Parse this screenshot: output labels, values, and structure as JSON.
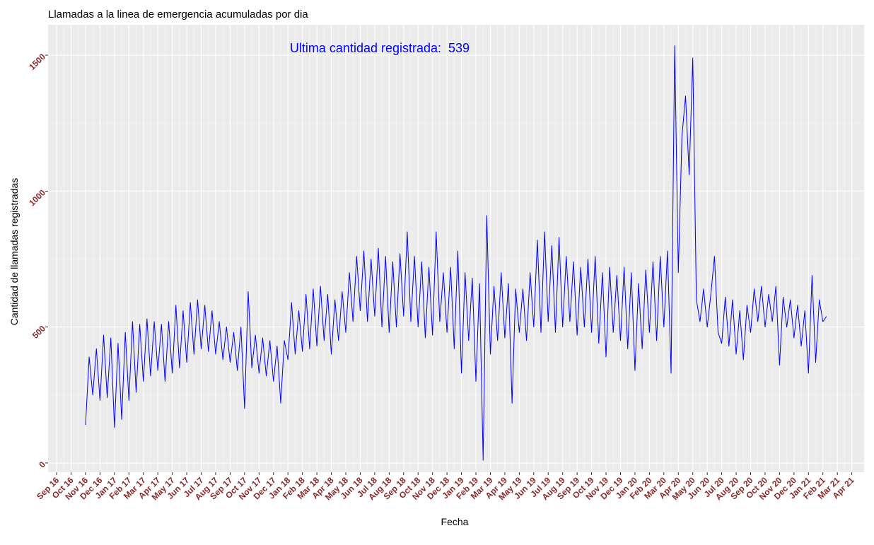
{
  "chart_data": {
    "type": "line",
    "title": "Llamadas a la linea de emergencia acumuladas por dia",
    "xlabel": "Fecha",
    "ylabel": "Cantidad de llamadas registradas",
    "annotation": "Ultima cantidad registrada:",
    "annotation_value": 539,
    "grid": true,
    "x": [
      2,
      2.25,
      2.5,
      2.75,
      3,
      3.25,
      3.5,
      3.75,
      4,
      4.25,
      4.5,
      4.75,
      5,
      5.25,
      5.5,
      5.75,
      6,
      6.25,
      6.5,
      6.75,
      7,
      7.25,
      7.5,
      7.75,
      8,
      8.25,
      8.5,
      8.75,
      9,
      9.25,
      9.5,
      9.75,
      10,
      10.25,
      10.5,
      10.75,
      11,
      11.25,
      11.5,
      11.75,
      12,
      12.25,
      12.5,
      12.75,
      13,
      13.25,
      13.5,
      13.75,
      14,
      14.25,
      14.5,
      14.75,
      15,
      15.25,
      15.5,
      15.75,
      16,
      16.25,
      16.5,
      16.75,
      17,
      17.25,
      17.5,
      17.75,
      18,
      18.25,
      18.5,
      18.75,
      19,
      19.25,
      19.5,
      19.75,
      20,
      20.25,
      20.5,
      20.75,
      21,
      21.25,
      21.5,
      21.75,
      22,
      22.25,
      22.5,
      22.75,
      23,
      23.25,
      23.5,
      23.75,
      24,
      24.25,
      24.5,
      24.75,
      25,
      25.25,
      25.5,
      25.75,
      26,
      26.25,
      26.5,
      26.75,
      27,
      27.25,
      27.5,
      27.75,
      28,
      28.25,
      28.5,
      28.75,
      29,
      29.25,
      29.5,
      29.75,
      30,
      30.25,
      30.5,
      30.75,
      31,
      31.25,
      31.5,
      31.75,
      32,
      32.25,
      32.5,
      32.75,
      33,
      33.25,
      33.5,
      33.75,
      34,
      34.25,
      34.5,
      34.75,
      35,
      35.25,
      35.5,
      35.75,
      36,
      36.25,
      36.5,
      36.75,
      37,
      37.25,
      37.5,
      37.75,
      38,
      38.25,
      38.5,
      38.75,
      39,
      39.25,
      39.5,
      39.75,
      40,
      40.25,
      40.5,
      40.75,
      41,
      41.25,
      41.5,
      41.75,
      42,
      42.25,
      42.5,
      42.75,
      43,
      43.25,
      43.5,
      43.75,
      44,
      44.25,
      44.5,
      44.75,
      45,
      45.25,
      45.5,
      45.75,
      46,
      46.25,
      46.5,
      46.75,
      47,
      47.25,
      47.5,
      47.75,
      48,
      48.25,
      48.5,
      48.75,
      49,
      49.25,
      49.5,
      49.75,
      50,
      50.25,
      50.5,
      50.75,
      51,
      51.25,
      51.5,
      51.75,
      52,
      52.25,
      52.5,
      52.75,
      53,
      53.25
    ],
    "series": [
      {
        "name": "Llamadas",
        "color": "#0000ff",
        "values": [
          140,
          390,
          250,
          420,
          230,
          470,
          240,
          460,
          130,
          440,
          160,
          480,
          230,
          520,
          260,
          510,
          300,
          530,
          320,
          520,
          340,
          510,
          300,
          520,
          330,
          580,
          350,
          560,
          370,
          590,
          400,
          600,
          420,
          580,
          410,
          560,
          400,
          520,
          380,
          500,
          370,
          480,
          340,
          500,
          200,
          630,
          350,
          470,
          330,
          460,
          320,
          450,
          300,
          430,
          220,
          450,
          380,
          590,
          400,
          560,
          410,
          620,
          420,
          640,
          430,
          650,
          450,
          620,
          400,
          600,
          450,
          630,
          480,
          700,
          520,
          760,
          560,
          780,
          520,
          750,
          540,
          790,
          500,
          760,
          480,
          740,
          500,
          770,
          540,
          850,
          520,
          760,
          500,
          740,
          460,
          720,
          470,
          850,
          520,
          700,
          480,
          720,
          420,
          780,
          330,
          700,
          450,
          680,
          300,
          660,
          10,
          910,
          400,
          650,
          450,
          700,
          460,
          660,
          220,
          640,
          480,
          640,
          450,
          700,
          500,
          820,
          480,
          850,
          520,
          800,
          480,
          830,
          500,
          760,
          520,
          740,
          470,
          720,
          500,
          750,
          480,
          760,
          440,
          700,
          390,
          720,
          480,
          690,
          450,
          720,
          420,
          700,
          340,
          660,
          420,
          710,
          480,
          740,
          450,
          760,
          500,
          780,
          330,
          1535,
          700,
          1200,
          1350,
          1060,
          1490,
          600,
          520,
          640,
          500,
          620,
          760,
          480,
          440,
          610,
          430,
          600,
          400,
          560,
          380,
          580,
          480,
          640,
          520,
          650,
          500,
          620,
          520,
          650,
          360,
          610,
          500,
          600,
          460,
          580,
          430,
          560,
          330,
          690,
          370,
          600,
          520,
          539
        ]
      }
    ],
    "xlim": [
      -0.59,
      55.85
    ],
    "xticks": [
      {
        "value": 0,
        "label": "Sep 16"
      },
      {
        "value": 1,
        "label": "Oct 16"
      },
      {
        "value": 2,
        "label": "Nov 16"
      },
      {
        "value": 3,
        "label": "Dec 16"
      },
      {
        "value": 4,
        "label": "Jan 17"
      },
      {
        "value": 5,
        "label": "Feb 17"
      },
      {
        "value": 6,
        "label": "Mar 17"
      },
      {
        "value": 7,
        "label": "Apr 17"
      },
      {
        "value": 8,
        "label": "May 17"
      },
      {
        "value": 9,
        "label": "Jun 17"
      },
      {
        "value": 10,
        "label": "Jul 17"
      },
      {
        "value": 11,
        "label": "Aug 17"
      },
      {
        "value": 12,
        "label": "Sep 17"
      },
      {
        "value": 13,
        "label": "Oct 17"
      },
      {
        "value": 14,
        "label": "Nov 17"
      },
      {
        "value": 15,
        "label": "Dec 17"
      },
      {
        "value": 16,
        "label": "Jan 18"
      },
      {
        "value": 17,
        "label": "Feb 18"
      },
      {
        "value": 18,
        "label": "Mar 18"
      },
      {
        "value": 19,
        "label": "Apr 18"
      },
      {
        "value": 20,
        "label": "May 18"
      },
      {
        "value": 21,
        "label": "Jun 18"
      },
      {
        "value": 22,
        "label": "Jul 18"
      },
      {
        "value": 23,
        "label": "Aug 18"
      },
      {
        "value": 24,
        "label": "Sep 18"
      },
      {
        "value": 25,
        "label": "Oct 18"
      },
      {
        "value": 26,
        "label": "Nov 18"
      },
      {
        "value": 27,
        "label": "Dec 18"
      },
      {
        "value": 28,
        "label": "Jan 19"
      },
      {
        "value": 29,
        "label": "Feb 19"
      },
      {
        "value": 30,
        "label": "Mar 19"
      },
      {
        "value": 31,
        "label": "Apr 19"
      },
      {
        "value": 32,
        "label": "May 19"
      },
      {
        "value": 33,
        "label": "Jun 19"
      },
      {
        "value": 34,
        "label": "Jul 19"
      },
      {
        "value": 35,
        "label": "Aug 19"
      },
      {
        "value": 36,
        "label": "Sep 19"
      },
      {
        "value": 37,
        "label": "Oct 19"
      },
      {
        "value": 38,
        "label": "Nov 19"
      },
      {
        "value": 39,
        "label": "Dec 19"
      },
      {
        "value": 40,
        "label": "Jan 20"
      },
      {
        "value": 41,
        "label": "Feb 20"
      },
      {
        "value": 42,
        "label": "Mar 20"
      },
      {
        "value": 43,
        "label": "Apr 20"
      },
      {
        "value": 44,
        "label": "May 20"
      },
      {
        "value": 45,
        "label": "Jun 20"
      },
      {
        "value": 46,
        "label": "Jul 20"
      },
      {
        "value": 47,
        "label": "Aug 20"
      },
      {
        "value": 48,
        "label": "Sep 20"
      },
      {
        "value": 49,
        "label": "Oct 20"
      },
      {
        "value": 50,
        "label": "Nov 20"
      },
      {
        "value": 51,
        "label": "Dec 20"
      },
      {
        "value": 52,
        "label": "Jan 21"
      },
      {
        "value": 53,
        "label": "Feb 21"
      },
      {
        "value": 54,
        "label": "Mar 21"
      },
      {
        "value": 55,
        "label": "Apr 21"
      }
    ],
    "ylim": [
      -34,
      1612
    ],
    "yticks": [
      0,
      500,
      1000,
      1500
    ]
  }
}
